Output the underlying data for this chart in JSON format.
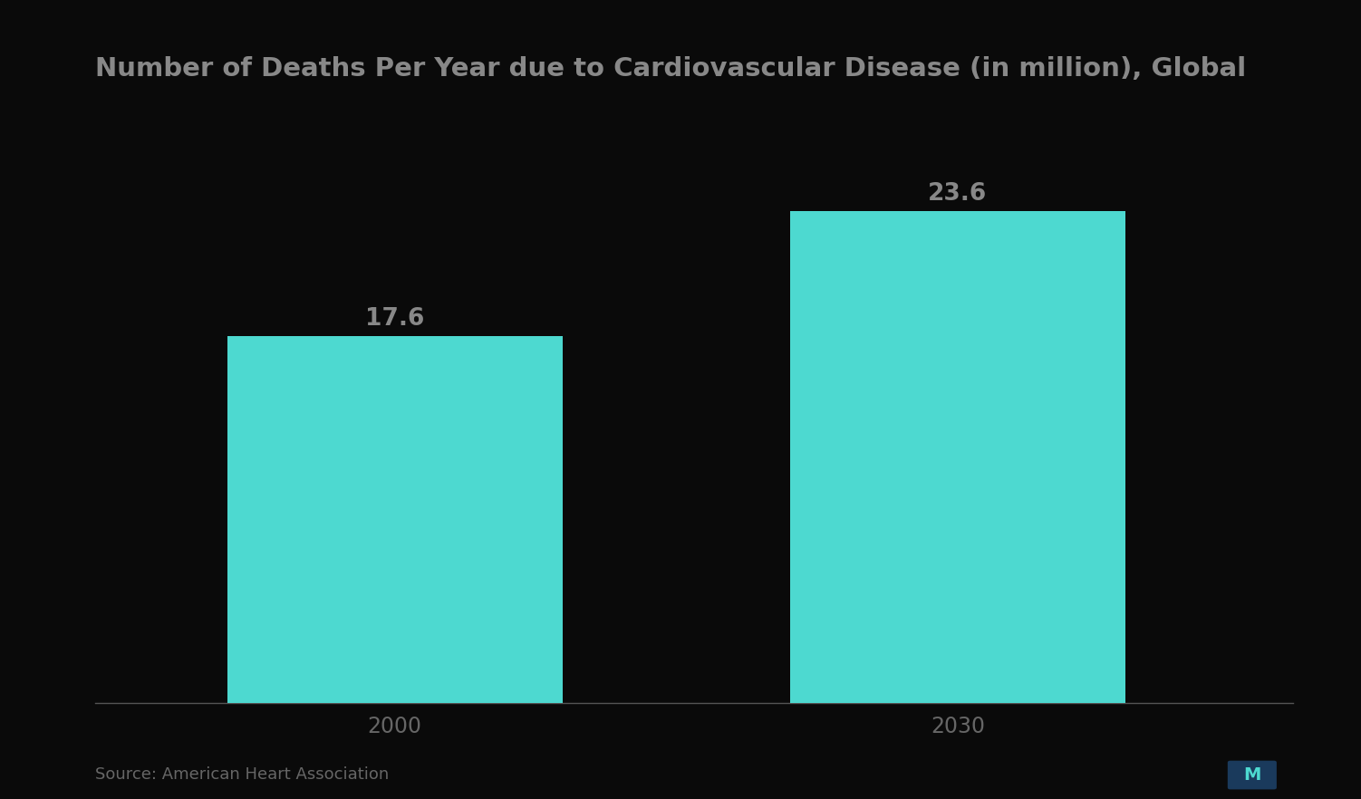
{
  "title": "Number of Deaths Per Year due to Cardiovascular Disease (in million), Global",
  "categories": [
    "2000",
    "2030"
  ],
  "values": [
    17.6,
    23.6
  ],
  "bar_color": "#4DD9D0",
  "bar_labels": [
    "17.6",
    "23.6"
  ],
  "background_color": "#0a0a0a",
  "title_color": "#888888",
  "label_color": "#888888",
  "tick_color": "#666666",
  "source_text": "Source: American Heart Association",
  "ylim": [
    0,
    28
  ],
  "bar_width": 0.28,
  "title_fontsize": 21,
  "label_fontsize": 19,
  "tick_fontsize": 17,
  "source_fontsize": 13,
  "x_positions": [
    0.25,
    0.72
  ]
}
